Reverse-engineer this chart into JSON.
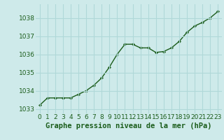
{
  "x": [
    0,
    1,
    2,
    3,
    4,
    5,
    6,
    7,
    8,
    9,
    10,
    11,
    12,
    13,
    14,
    15,
    16,
    17,
    18,
    19,
    20,
    21,
    22,
    23
  ],
  "y": [
    1033.2,
    1033.6,
    1033.6,
    1033.6,
    1033.6,
    1033.8,
    1034.0,
    1034.3,
    1034.7,
    1035.3,
    1036.0,
    1036.55,
    1036.55,
    1036.35,
    1036.35,
    1036.1,
    1036.15,
    1036.35,
    1036.7,
    1037.2,
    1037.55,
    1037.75,
    1038.0,
    1038.35
  ],
  "line_color": "#1a5c1a",
  "marker": "D",
  "marker_size": 2.0,
  "linewidth": 1.0,
  "title": "Graphe pression niveau de la mer (hPa)",
  "ylim": [
    1032.75,
    1038.75
  ],
  "xlim": [
    -0.5,
    23.5
  ],
  "yticks": [
    1033,
    1034,
    1035,
    1036,
    1037,
    1038
  ],
  "xticks": [
    0,
    1,
    2,
    3,
    4,
    5,
    6,
    7,
    8,
    9,
    10,
    11,
    12,
    13,
    14,
    15,
    16,
    17,
    18,
    19,
    20,
    21,
    22,
    23
  ],
  "xtick_labels": [
    "0",
    "1",
    "2",
    "3",
    "4",
    "5",
    "6",
    "7",
    "8",
    "9",
    "10",
    "11",
    "12",
    "13",
    "14",
    "15",
    "16",
    "17",
    "18",
    "19",
    "20",
    "21",
    "22",
    "23"
  ],
  "background_color": "#ceeaea",
  "grid_color": "#b0d8d8",
  "tick_fontsize": 6.5,
  "title_fontsize": 7.5,
  "tick_color": "#1a5c1a",
  "title_color": "#1a5c1a",
  "title_bold": true
}
